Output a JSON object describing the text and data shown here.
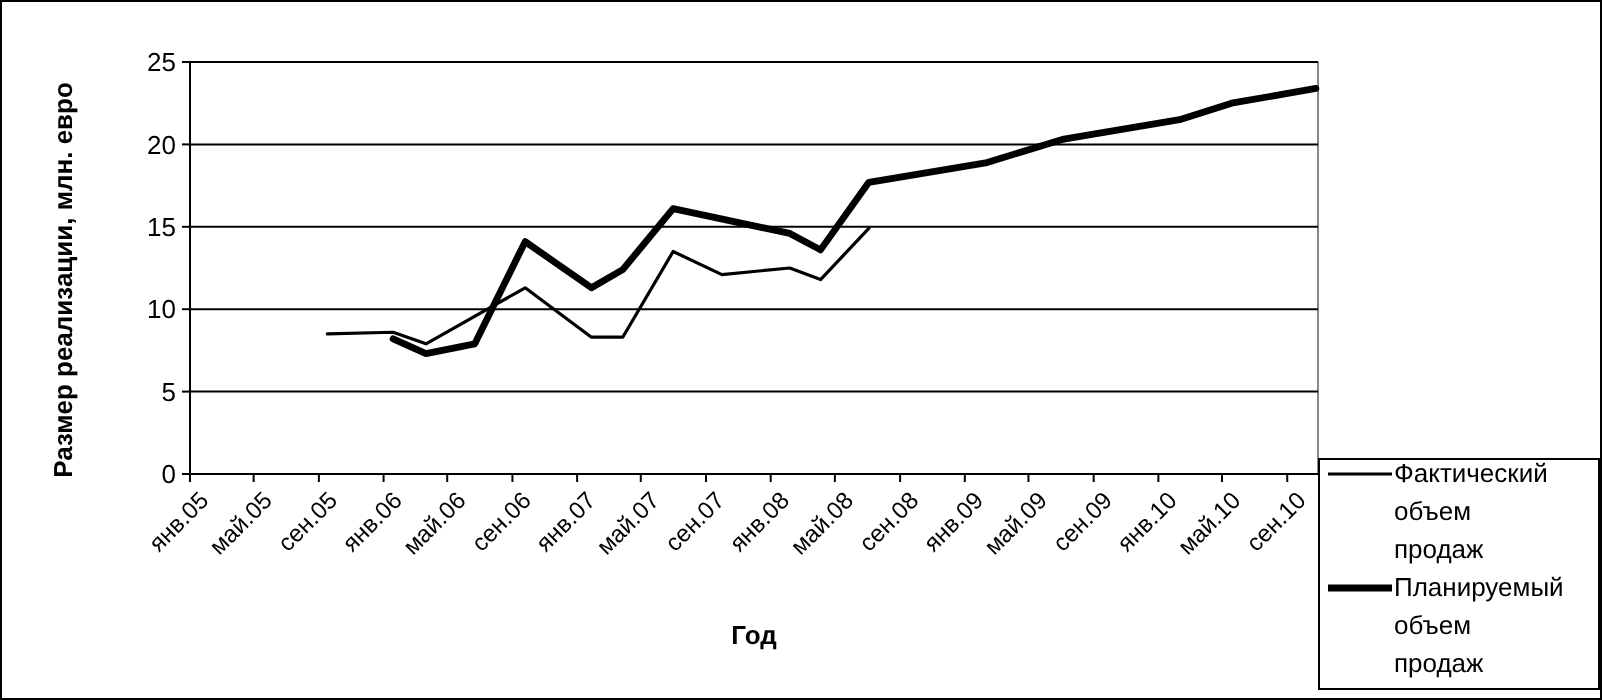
{
  "chart_data": {
    "type": "line",
    "xlabel": "Год",
    "ylabel": "Размер реализации, млн. евро",
    "xlim": [
      "2005-01-01",
      "2010-10-29"
    ],
    "xticks": [
      {
        "value": "2005-01",
        "label": "янв.05"
      },
      {
        "value": "2005-05",
        "label": "май.05"
      },
      {
        "value": "2005-09",
        "label": "сен.05"
      },
      {
        "value": "2006-01",
        "label": "янв.06"
      },
      {
        "value": "2006-05",
        "label": "май.06"
      },
      {
        "value": "2006-09",
        "label": "сен.06"
      },
      {
        "value": "2007-01",
        "label": "янв.07"
      },
      {
        "value": "2007-05",
        "label": "май.07"
      },
      {
        "value": "2007-09",
        "label": "сен.07"
      },
      {
        "value": "2008-01",
        "label": "янв.08"
      },
      {
        "value": "2008-05",
        "label": "май.08"
      },
      {
        "value": "2008-09",
        "label": "сен.08"
      },
      {
        "value": "2009-01",
        "label": "янв.09"
      },
      {
        "value": "2009-05",
        "label": "май.09"
      },
      {
        "value": "2009-09",
        "label": "сен.09"
      },
      {
        "value": "2010-01",
        "label": "янв.10"
      },
      {
        "value": "2010-05",
        "label": "май.10"
      },
      {
        "value": "2010-09",
        "label": "сен.10"
      }
    ],
    "ylim": [
      0,
      25
    ],
    "yticks": [
      0,
      5,
      10,
      15,
      20,
      25
    ],
    "grid": "y",
    "legend": "bottom right",
    "marker": "none",
    "line_style": "solid",
    "series": [
      {
        "name": "Фактический объем продаж",
        "color": "#000000",
        "x": [
          "2005-09-17",
          "2006-01-19",
          "2006-03-22",
          "2006-09-25",
          "2007-01-28",
          "2007-03-28",
          "2007-07-01",
          "2007-10-01",
          "2008-02-06",
          "2008-04-04",
          "2008-07-04"
        ],
        "values": [
          8.5,
          8.6,
          7.9,
          11.3,
          8.3,
          8.3,
          13.5,
          12.1,
          12.5,
          11.8,
          14.9
        ]
      },
      {
        "name": "Планируемый объем продаж",
        "color": "#000000",
        "x": [
          "2006-01-19",
          "2006-03-22",
          "2006-06-22",
          "2006-09-25",
          "2007-01-28",
          "2007-03-28",
          "2007-07-01",
          "2008-02-06",
          "2008-04-04",
          "2008-07-04",
          "2009-02-12",
          "2009-07-04",
          "2010-02-10",
          "2010-05-19",
          "2010-10-25"
        ],
        "values": [
          8.2,
          7.3,
          7.9,
          14.1,
          11.3,
          12.4,
          16.1,
          14.6,
          13.6,
          17.7,
          18.9,
          20.3,
          21.5,
          22.5,
          23.4
        ]
      }
    ]
  }
}
